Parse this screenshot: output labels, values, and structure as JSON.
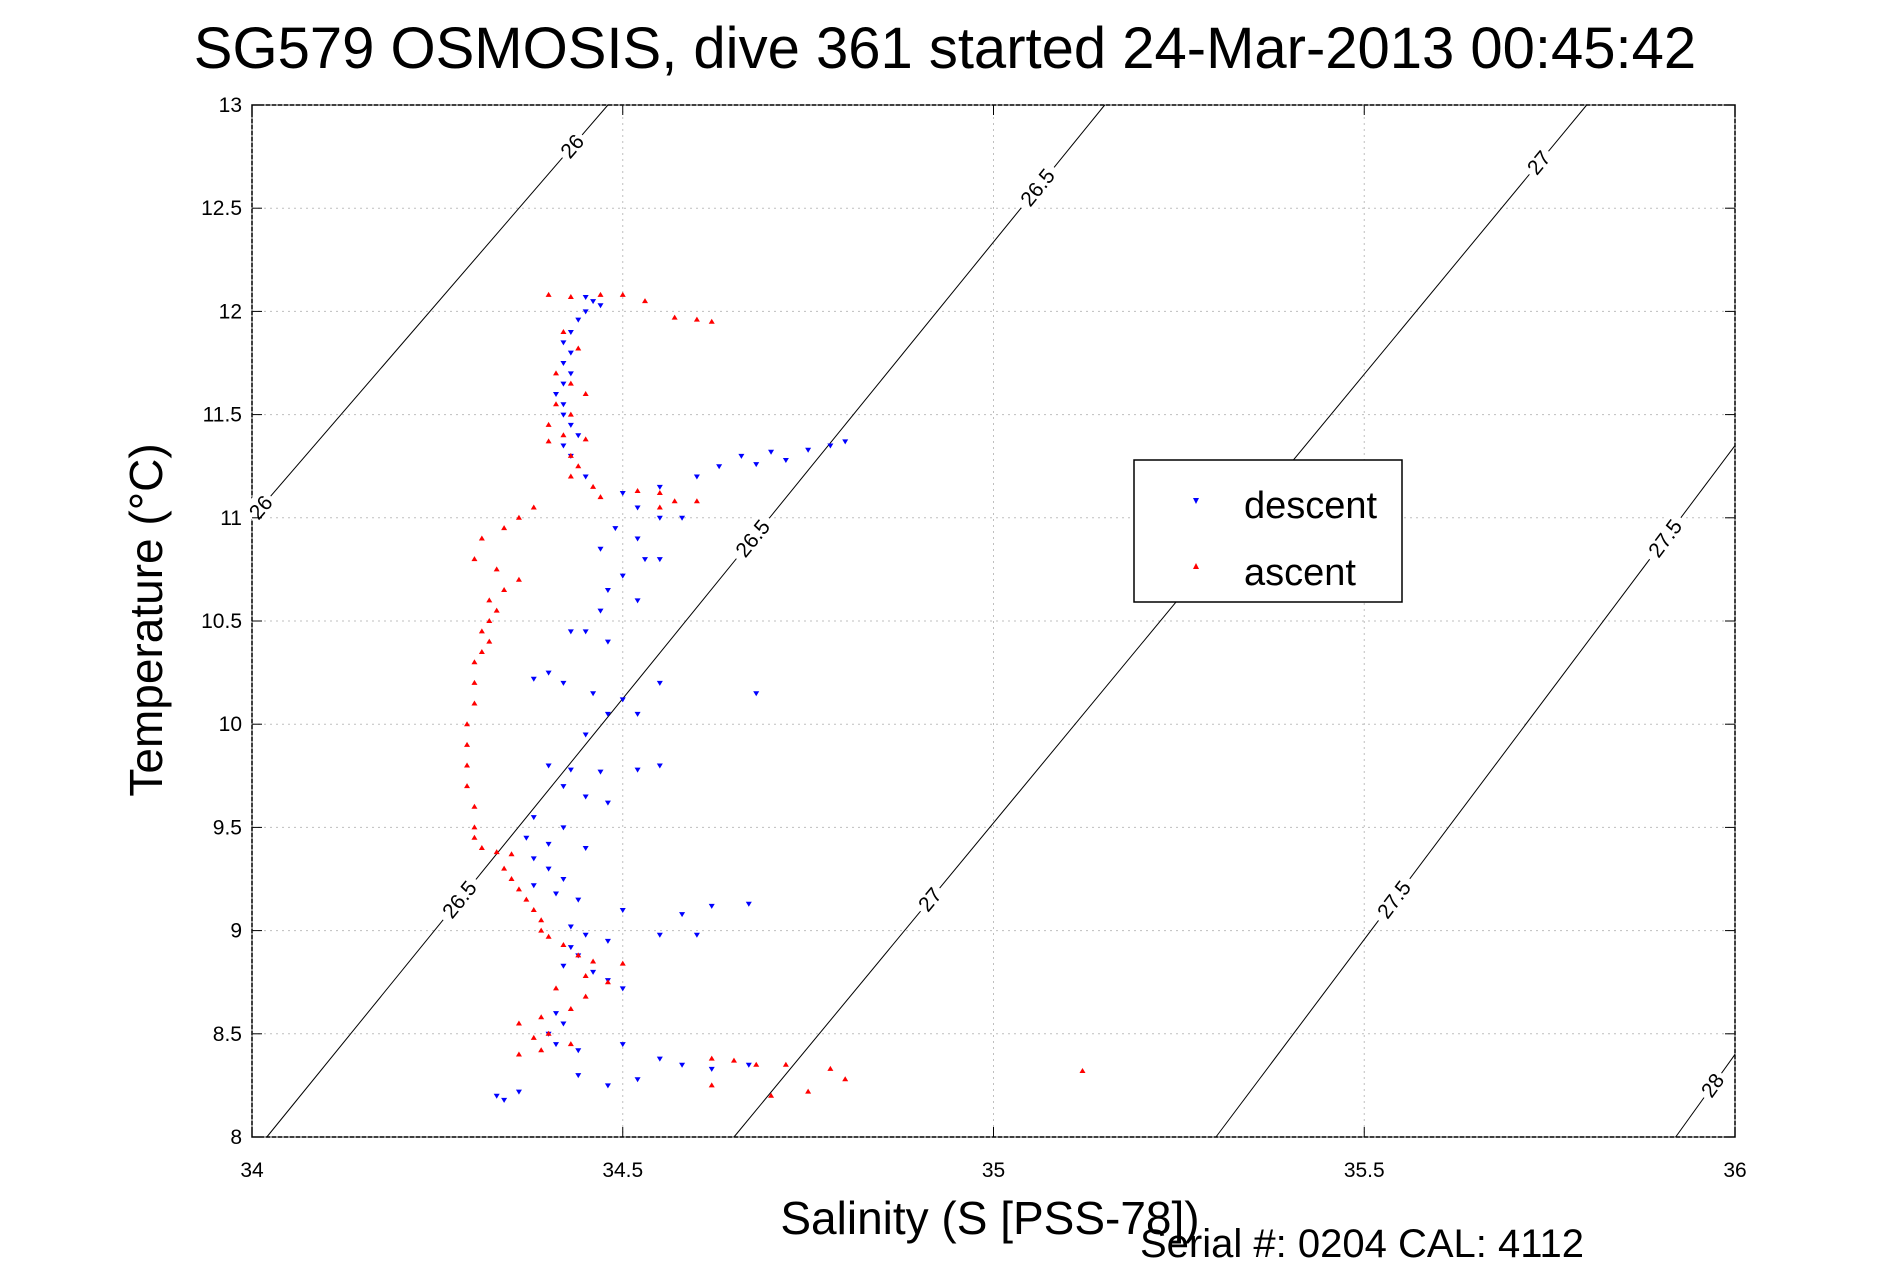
{
  "chart_data": {
    "type": "scatter",
    "title": "SG579 OSMOSIS, dive 361 started 24-Mar-2013 00:45:42",
    "xlabel": "Salinity (S [PSS-78])",
    "ylabel": "Temperature (°C)",
    "footer": "Serial #: 0204  CAL: 4112",
    "xlim": [
      34,
      36
    ],
    "ylim": [
      8,
      13
    ],
    "grid": true,
    "legend_position": "right",
    "x_ticks": [
      "34",
      "34.5",
      "35",
      "35.5",
      "36"
    ],
    "y_ticks": [
      "8",
      "8.5",
      "9",
      "9.5",
      "10",
      "10.5",
      "11",
      "11.5",
      "12",
      "12.5",
      "13"
    ],
    "density_contours": [
      {
        "level": 26,
        "labels": [
          "26",
          "26"
        ]
      },
      {
        "level": 26.5,
        "labels": [
          "26.5",
          "26.5",
          "26.5"
        ]
      },
      {
        "level": 27,
        "labels": [
          "27",
          "27"
        ]
      },
      {
        "level": 27.5,
        "labels": [
          "27.5",
          "27.5"
        ]
      },
      {
        "level": 28,
        "labels": [
          "28"
        ]
      }
    ],
    "series": [
      {
        "name": "descent",
        "color": "#0000ff",
        "marker": "triangle-down",
        "points": [
          [
            34.45,
            12.07
          ],
          [
            34.46,
            12.05
          ],
          [
            34.47,
            12.03
          ],
          [
            34.45,
            12.0
          ],
          [
            34.44,
            11.96
          ],
          [
            34.43,
            11.9
          ],
          [
            34.42,
            11.85
          ],
          [
            34.43,
            11.8
          ],
          [
            34.42,
            11.75
          ],
          [
            34.43,
            11.7
          ],
          [
            34.42,
            11.65
          ],
          [
            34.41,
            11.6
          ],
          [
            34.42,
            11.55
          ],
          [
            34.42,
            11.5
          ],
          [
            34.43,
            11.45
          ],
          [
            34.44,
            11.4
          ],
          [
            34.42,
            11.35
          ],
          [
            34.43,
            11.3
          ],
          [
            34.45,
            11.2
          ],
          [
            34.5,
            11.12
          ],
          [
            34.55,
            11.15
          ],
          [
            34.6,
            11.2
          ],
          [
            34.63,
            11.25
          ],
          [
            34.66,
            11.3
          ],
          [
            34.7,
            11.32
          ],
          [
            34.75,
            11.33
          ],
          [
            34.78,
            11.35
          ],
          [
            34.8,
            11.37
          ],
          [
            34.72,
            11.28
          ],
          [
            34.68,
            11.26
          ],
          [
            34.52,
            11.05
          ],
          [
            34.55,
            11.0
          ],
          [
            34.58,
            11.0
          ],
          [
            34.49,
            10.95
          ],
          [
            34.52,
            10.9
          ],
          [
            34.47,
            10.85
          ],
          [
            34.53,
            10.8
          ],
          [
            34.55,
            10.8
          ],
          [
            34.5,
            10.72
          ],
          [
            34.48,
            10.65
          ],
          [
            34.52,
            10.6
          ],
          [
            34.47,
            10.55
          ],
          [
            34.45,
            10.45
          ],
          [
            34.43,
            10.45
          ],
          [
            34.48,
            10.4
          ],
          [
            34.4,
            10.25
          ],
          [
            34.38,
            10.22
          ],
          [
            34.42,
            10.2
          ],
          [
            34.46,
            10.15
          ],
          [
            34.5,
            10.12
          ],
          [
            34.48,
            10.05
          ],
          [
            34.52,
            10.05
          ],
          [
            34.68,
            10.15
          ],
          [
            34.55,
            10.2
          ],
          [
            34.45,
            9.95
          ],
          [
            34.4,
            9.8
          ],
          [
            34.43,
            9.78
          ],
          [
            34.47,
            9.77
          ],
          [
            34.52,
            9.78
          ],
          [
            34.55,
            9.8
          ],
          [
            34.42,
            9.7
          ],
          [
            34.45,
            9.65
          ],
          [
            34.48,
            9.62
          ],
          [
            34.38,
            9.55
          ],
          [
            34.42,
            9.5
          ],
          [
            34.37,
            9.45
          ],
          [
            34.4,
            9.42
          ],
          [
            34.45,
            9.4
          ],
          [
            34.38,
            9.35
          ],
          [
            34.4,
            9.3
          ],
          [
            34.42,
            9.25
          ],
          [
            34.38,
            9.22
          ],
          [
            34.41,
            9.18
          ],
          [
            34.44,
            9.15
          ],
          [
            34.5,
            9.1
          ],
          [
            34.58,
            9.08
          ],
          [
            34.62,
            9.12
          ],
          [
            34.67,
            9.13
          ],
          [
            34.43,
            9.02
          ],
          [
            34.45,
            8.98
          ],
          [
            34.48,
            8.95
          ],
          [
            34.55,
            8.98
          ],
          [
            34.6,
            8.98
          ],
          [
            34.43,
            8.92
          ],
          [
            34.44,
            8.88
          ],
          [
            34.42,
            8.83
          ],
          [
            34.46,
            8.8
          ],
          [
            34.48,
            8.76
          ],
          [
            34.5,
            8.72
          ],
          [
            34.41,
            8.6
          ],
          [
            34.42,
            8.55
          ],
          [
            34.4,
            8.5
          ],
          [
            34.41,
            8.45
          ],
          [
            34.44,
            8.42
          ],
          [
            34.5,
            8.45
          ],
          [
            34.55,
            8.38
          ],
          [
            34.58,
            8.35
          ],
          [
            34.62,
            8.33
          ],
          [
            34.67,
            8.35
          ],
          [
            34.48,
            8.25
          ],
          [
            34.44,
            8.3
          ],
          [
            34.33,
            8.2
          ],
          [
            34.34,
            8.18
          ],
          [
            34.36,
            8.22
          ],
          [
            34.52,
            8.28
          ]
        ]
      },
      {
        "name": "ascent",
        "color": "#ff0000",
        "marker": "triangle-up",
        "points": [
          [
            34.4,
            12.08
          ],
          [
            34.43,
            12.07
          ],
          [
            34.47,
            12.08
          ],
          [
            34.5,
            12.08
          ],
          [
            34.53,
            12.05
          ],
          [
            34.57,
            11.97
          ],
          [
            34.6,
            11.96
          ],
          [
            34.62,
            11.95
          ],
          [
            34.42,
            11.9
          ],
          [
            34.44,
            11.82
          ],
          [
            34.41,
            11.7
          ],
          [
            34.43,
            11.65
          ],
          [
            34.45,
            11.6
          ],
          [
            34.41,
            11.55
          ],
          [
            34.43,
            11.5
          ],
          [
            34.4,
            11.45
          ],
          [
            34.42,
            11.4
          ],
          [
            34.45,
            11.38
          ],
          [
            34.4,
            11.37
          ],
          [
            34.43,
            11.3
          ],
          [
            34.44,
            11.25
          ],
          [
            34.43,
            11.2
          ],
          [
            34.46,
            11.15
          ],
          [
            34.52,
            11.13
          ],
          [
            34.55,
            11.12
          ],
          [
            34.57,
            11.08
          ],
          [
            34.38,
            11.05
          ],
          [
            34.36,
            11.0
          ],
          [
            34.34,
            10.95
          ],
          [
            34.31,
            10.9
          ],
          [
            34.3,
            10.8
          ],
          [
            34.33,
            10.75
          ],
          [
            34.36,
            10.7
          ],
          [
            34.34,
            10.65
          ],
          [
            34.32,
            10.6
          ],
          [
            34.33,
            10.55
          ],
          [
            34.32,
            10.5
          ],
          [
            34.31,
            10.45
          ],
          [
            34.32,
            10.4
          ],
          [
            34.31,
            10.35
          ],
          [
            34.3,
            10.3
          ],
          [
            34.3,
            10.2
          ],
          [
            34.3,
            10.1
          ],
          [
            34.29,
            10.0
          ],
          [
            34.29,
            9.9
          ],
          [
            34.29,
            9.8
          ],
          [
            34.29,
            9.7
          ],
          [
            34.3,
            9.6
          ],
          [
            34.3,
            9.5
          ],
          [
            34.3,
            9.45
          ],
          [
            34.31,
            9.4
          ],
          [
            34.33,
            9.38
          ],
          [
            34.35,
            9.37
          ],
          [
            34.34,
            9.3
          ],
          [
            34.35,
            9.25
          ],
          [
            34.36,
            9.2
          ],
          [
            34.37,
            9.15
          ],
          [
            34.38,
            9.1
          ],
          [
            34.39,
            9.05
          ],
          [
            34.39,
            9.0
          ],
          [
            34.4,
            8.97
          ],
          [
            34.42,
            8.93
          ],
          [
            34.44,
            8.88
          ],
          [
            34.46,
            8.85
          ],
          [
            34.5,
            8.84
          ],
          [
            34.45,
            8.78
          ],
          [
            34.41,
            8.72
          ],
          [
            34.43,
            8.62
          ],
          [
            34.39,
            8.58
          ],
          [
            34.36,
            8.55
          ],
          [
            34.4,
            8.5
          ],
          [
            34.43,
            8.45
          ],
          [
            34.39,
            8.42
          ],
          [
            34.36,
            8.4
          ],
          [
            34.62,
            8.38
          ],
          [
            34.65,
            8.37
          ],
          [
            34.68,
            8.35
          ],
          [
            34.72,
            8.35
          ],
          [
            34.78,
            8.33
          ],
          [
            34.8,
            8.28
          ],
          [
            34.75,
            8.22
          ],
          [
            34.7,
            8.2
          ],
          [
            34.62,
            8.25
          ],
          [
            35.12,
            8.32
          ],
          [
            34.48,
            8.75
          ],
          [
            34.45,
            8.68
          ],
          [
            34.38,
            8.48
          ],
          [
            34.55,
            11.05
          ],
          [
            34.6,
            11.08
          ],
          [
            34.47,
            11.1
          ]
        ]
      }
    ]
  }
}
